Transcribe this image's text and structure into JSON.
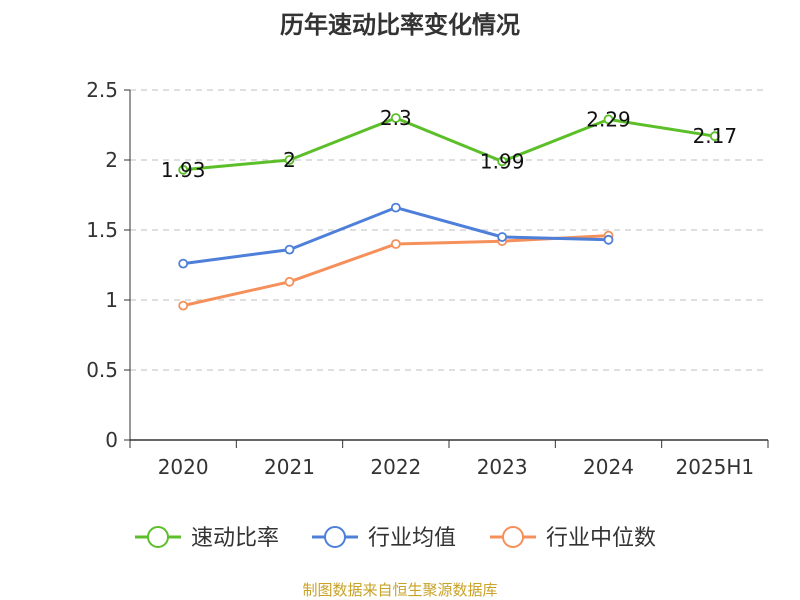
{
  "chart_data": {
    "type": "line",
    "title": "历年速动比率变化情况",
    "categories": [
      "2020",
      "2021",
      "2022",
      "2023",
      "2024",
      "2025H1"
    ],
    "ylim": [
      0,
      2.5
    ],
    "yticks": [
      "0",
      "0.5",
      "1",
      "1.5",
      "2",
      "2.5"
    ],
    "grid": true,
    "legend_position": "bottom",
    "series": [
      {
        "name": "速动比率",
        "color": "#5cbf2a",
        "values": [
          1.93,
          2,
          2.3,
          1.99,
          2.29,
          2.17
        ],
        "labels": [
          "1.93",
          "2",
          "2.3",
          "1.99",
          "2.29",
          "2.17"
        ],
        "show_labels": true
      },
      {
        "name": "行业均值",
        "color": "#4e7fd9",
        "values": [
          1.26,
          1.36,
          1.66,
          1.45,
          1.43,
          null
        ],
        "show_labels": false
      },
      {
        "name": "行业中位数",
        "color": "#f5905a",
        "values": [
          0.96,
          1.13,
          1.4,
          1.42,
          1.46,
          null
        ],
        "show_labels": false
      }
    ],
    "source": "制图数据来自恒生聚源数据库"
  }
}
